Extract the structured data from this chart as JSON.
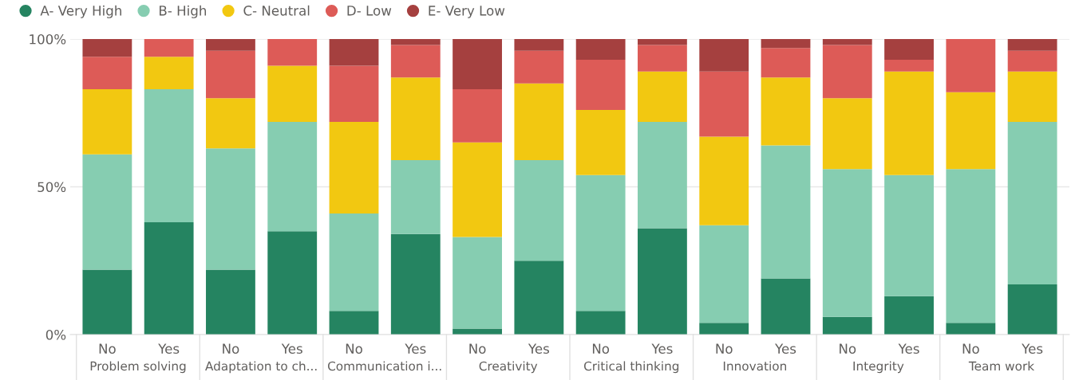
{
  "chart_data": {
    "type": "bar",
    "stacked": true,
    "categories": [
      "No",
      "Yes",
      "No",
      "Yes",
      "No",
      "Yes",
      "No",
      "Yes",
      "No",
      "Yes",
      "No",
      "Yes",
      "No",
      "Yes",
      "No",
      "Yes"
    ],
    "annotations": [
      "Problem solving",
      "Adaptation to ch...",
      "Communication i...",
      "Creativity",
      "Critical thinking",
      "Innovation",
      "Integrity",
      "Team work"
    ],
    "series": [
      {
        "name": "A- Very High",
        "color": "#258461",
        "values": [
          22,
          38,
          22,
          35,
          8,
          34,
          2,
          25,
          8,
          36,
          4,
          19,
          6,
          13,
          4,
          17
        ]
      },
      {
        "name": "B- High",
        "color": "#86cdb1",
        "values": [
          39,
          45,
          41,
          37,
          33,
          25,
          31,
          34,
          46,
          36,
          33,
          45,
          50,
          41,
          52,
          55
        ]
      },
      {
        "name": "C- Neutral",
        "color": "#f2c811",
        "values": [
          22,
          11,
          17,
          19,
          31,
          28,
          32,
          26,
          22,
          17,
          30,
          23,
          24,
          35,
          26,
          17
        ]
      },
      {
        "name": "D- Low",
        "color": "#dd5b57",
        "values": [
          11,
          6,
          16,
          9,
          19,
          11,
          18,
          11,
          17,
          9,
          22,
          10,
          18,
          4,
          18,
          7
        ]
      },
      {
        "name": "E- Very Low",
        "color": "#a5403f",
        "values": [
          6,
          0,
          4,
          0,
          9,
          2,
          17,
          4,
          7,
          2,
          11,
          3,
          2,
          7,
          0,
          4
        ]
      }
    ],
    "ylim": [
      0,
      100
    ],
    "yticks": [
      {
        "value": 0,
        "label": "0%"
      },
      {
        "value": 50,
        "label": "50%"
      },
      {
        "value": 100,
        "label": "100%"
      }
    ],
    "grid": "y",
    "legend": "top left"
  }
}
